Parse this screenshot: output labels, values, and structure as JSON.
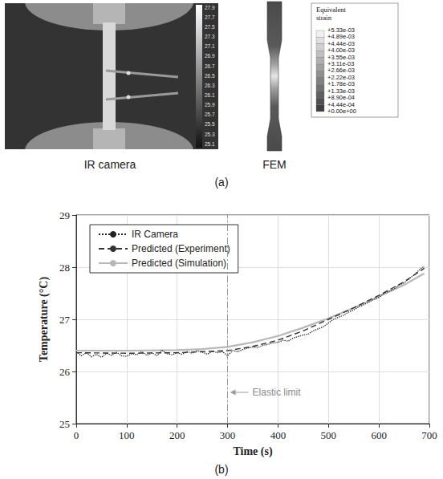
{
  "panel_a": {
    "caption": "(a)",
    "ir_camera": {
      "label": "IR camera",
      "scale_labels": [
        "27.9",
        "27.7",
        "27.5",
        "27.3",
        "27.1",
        "26.9",
        "26.7",
        "26.5",
        "26.3",
        "26.1",
        "25.9",
        "25.7",
        "25.5",
        "25.3",
        "25.1"
      ]
    },
    "fem": {
      "label": "FEM",
      "legend_title": "Equivalent strain",
      "legend_labels": [
        "+5.33e-03",
        "+4.89e-03",
        "+4.44e-03",
        "+4.00e-03",
        "+3.55e-03",
        "+3.11e-03",
        "+2.66e-03",
        "+2.22e-03",
        "+1.78e-03",
        "+1.33e-03",
        "+8.90e-04",
        "+4.44e-04",
        "+0.00e+00"
      ]
    }
  },
  "chart_data": {
    "type": "line",
    "caption": "(b)",
    "x_label": "Time (s)",
    "y_label": "Temperature (°C)",
    "xlim": [
      0,
      700
    ],
    "xticks": [
      0,
      100,
      200,
      300,
      400,
      500,
      600,
      700
    ],
    "ylim": [
      25,
      29
    ],
    "yticks": [
      25,
      26,
      27,
      28,
      29
    ],
    "grid": true,
    "legend": "upper left",
    "series": [
      {
        "name": "IR Camera",
        "color": "#222222",
        "line_style": "dotted",
        "x": [
          0,
          10,
          20,
          30,
          40,
          50,
          60,
          70,
          80,
          90,
          100,
          110,
          120,
          130,
          140,
          150,
          160,
          170,
          180,
          190,
          200,
          210,
          220,
          230,
          240,
          250,
          260,
          270,
          280,
          290,
          300,
          310,
          320,
          330,
          340,
          350,
          360,
          370,
          380,
          390,
          400,
          410,
          420,
          430,
          440,
          450,
          460,
          470,
          480,
          490,
          500,
          510,
          520,
          530,
          540,
          550,
          560,
          570,
          580,
          590,
          600,
          610,
          620,
          630,
          640,
          650,
          660,
          670,
          680,
          690
        ],
        "values": [
          26.38,
          26.3,
          26.36,
          26.28,
          26.33,
          26.27,
          26.35,
          26.31,
          26.37,
          26.3,
          26.29,
          26.34,
          26.32,
          26.38,
          26.31,
          26.36,
          26.3,
          26.41,
          26.34,
          26.32,
          26.36,
          26.33,
          26.38,
          26.35,
          26.4,
          26.37,
          26.33,
          26.39,
          26.36,
          26.38,
          26.3,
          26.4,
          26.38,
          26.42,
          26.45,
          26.47,
          26.46,
          26.5,
          26.52,
          26.55,
          26.56,
          26.6,
          26.58,
          26.64,
          26.67,
          26.7,
          26.72,
          26.78,
          26.82,
          26.86,
          26.93,
          27.0,
          27.04,
          27.08,
          27.14,
          27.18,
          27.24,
          27.28,
          27.33,
          27.38,
          27.42,
          27.5,
          27.54,
          27.58,
          27.66,
          27.7,
          27.78,
          27.85,
          27.95,
          28.02
        ]
      },
      {
        "name": "Predicted (Experiment)",
        "color": "#333333",
        "line_style": "dashed",
        "x": [
          0,
          100,
          200,
          250,
          300,
          350,
          400,
          450,
          500,
          550,
          600,
          650,
          690
        ],
        "values": [
          26.36,
          26.35,
          26.36,
          26.38,
          26.4,
          26.48,
          26.6,
          26.78,
          27.0,
          27.22,
          27.46,
          27.72,
          27.98
        ]
      },
      {
        "name": "Predicted (Simulation)",
        "color": "#b8b8b8",
        "line_style": "solid",
        "x": [
          0,
          100,
          200,
          250,
          300,
          350,
          400,
          450,
          500,
          550,
          600,
          650,
          690
        ],
        "values": [
          26.4,
          26.4,
          26.41,
          26.43,
          26.47,
          26.56,
          26.68,
          26.84,
          27.02,
          27.22,
          27.44,
          27.66,
          27.88
        ]
      }
    ],
    "annotations": [
      {
        "text": "Elastic limit",
        "x": 300,
        "y": 25.6
      }
    ]
  }
}
